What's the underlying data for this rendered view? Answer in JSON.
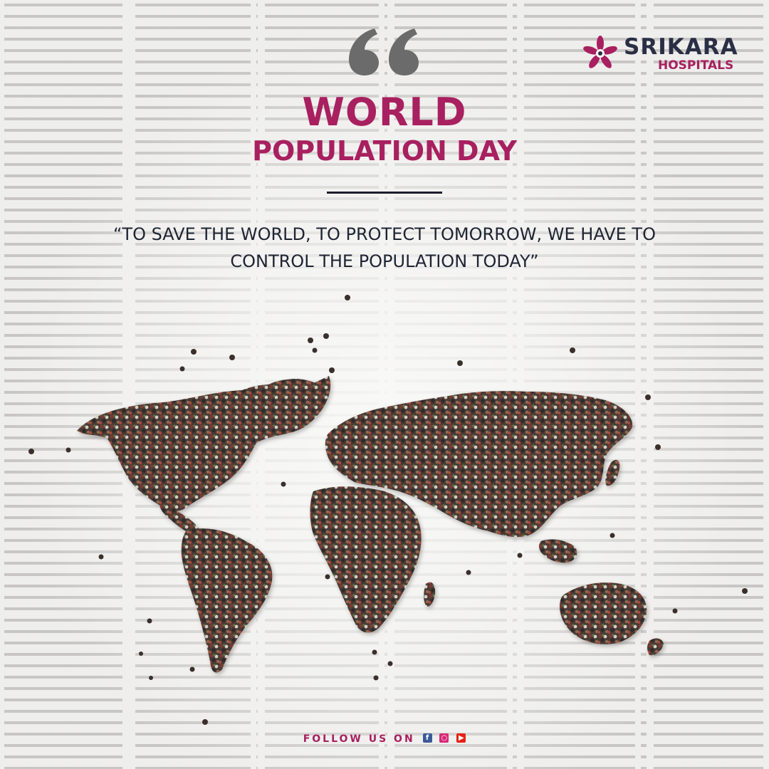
{
  "header": {
    "title_line1": "WORLD",
    "title_line2": "POPULATION DAY",
    "quote": "“TO SAVE THE WORLD, TO PROTECT TOMORROW, WE HAVE TO CONTROL THE POPULATION TODAY”"
  },
  "logo": {
    "name": "SRIKARA",
    "subtitle": "HOSPITALS"
  },
  "footer": {
    "text": "FOLLOW US ON",
    "icons": [
      "facebook-icon",
      "instagram-icon",
      "youtube-icon"
    ]
  },
  "colors": {
    "accent": "#a8205f",
    "dark": "#1f2433",
    "quote_mark": "#6b6b6b"
  }
}
